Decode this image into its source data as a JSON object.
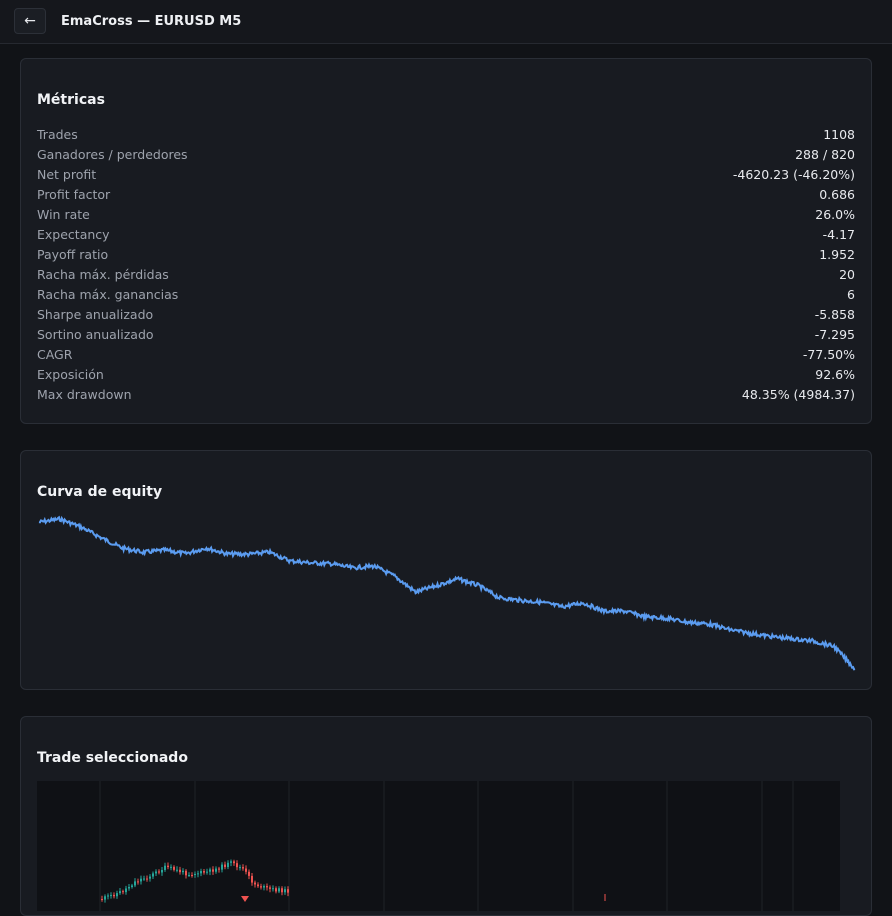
{
  "header": {
    "back_icon": "←",
    "title": "EmaCross — EURUSD M5"
  },
  "metrics": {
    "title": "Métricas",
    "rows": [
      {
        "label": "Trades",
        "value": "1108"
      },
      {
        "label": "Ganadores / perdedores",
        "value": "288 / 820"
      },
      {
        "label": "Net profit",
        "value": "-4620.23 (-46.20%)"
      },
      {
        "label": "Profit factor",
        "value": "0.686"
      },
      {
        "label": "Win rate",
        "value": "26.0%"
      },
      {
        "label": "Expectancy",
        "value": "-4.17"
      },
      {
        "label": "Payoff ratio",
        "value": "1.952"
      },
      {
        "label": "Racha máx. pérdidas",
        "value": "20"
      },
      {
        "label": "Racha máx. ganancias",
        "value": "6"
      },
      {
        "label": "Sharpe anualizado",
        "value": "-5.858"
      },
      {
        "label": "Sortino anualizado",
        "value": "-7.295"
      },
      {
        "label": "CAGR",
        "value": "-77.50%"
      },
      {
        "label": "Exposición",
        "value": "92.6%"
      },
      {
        "label": "Max drawdown",
        "value": "48.35% (4984.37)"
      }
    ]
  },
  "equity": {
    "title": "Curva de equity",
    "color": "#5b9cf0"
  },
  "trade": {
    "title": "Trade seleccionado",
    "up_color": "#26a69a",
    "down_color": "#ef5350"
  },
  "chart_data": {
    "type": "line",
    "title": "Curva de equity",
    "xlabel": "",
    "ylabel": "",
    "series": [
      {
        "values": [
          10000,
          10100,
          9850,
          9500,
          9180,
          9050,
          9120,
          9010,
          9190,
          9000,
          8990,
          9060,
          8780,
          8720,
          8690,
          8560,
          8620,
          8300,
          7800,
          8000,
          8220,
          8010,
          7620,
          7540,
          7480,
          7340,
          7460,
          7200,
          7200,
          7020,
          6980,
          6850,
          6800,
          6620,
          6500,
          6400,
          6330,
          6260,
          6090,
          5380
        ]
      }
    ],
    "grid": false,
    "legend": "none"
  }
}
